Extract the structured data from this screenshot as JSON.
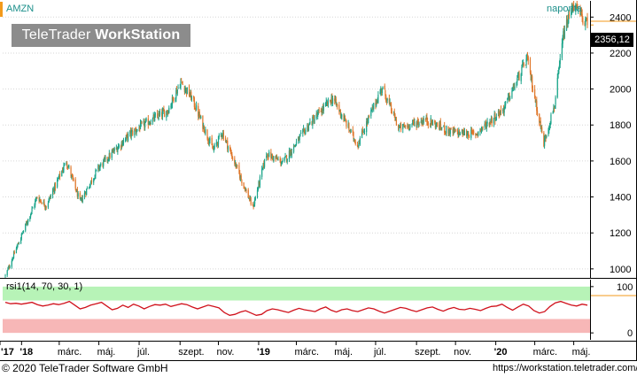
{
  "chart": {
    "symbol": "AMZN",
    "period": "naponta",
    "watermark_brand": "TeleTrader",
    "watermark_product": "WorkStation",
    "last_price": "2356,12",
    "rsi_label": "rsi1(14, 70, 30, 1)",
    "copyright": "© 2020 TeleTrader Software GmbH",
    "url": "https://workstation.teletrader.com/",
    "colors": {
      "up": "#1ba48a",
      "down": "#e0772a",
      "rsi_line": "#d0111b",
      "overbought": "#b7f3b7",
      "oversold": "#f7b7b7",
      "axis_accent": "#f39a1b"
    }
  },
  "chart_data": [
    {
      "type": "candlestick",
      "title": "AMZN",
      "ylim": [
        950,
        2490
      ],
      "y_ticks": [
        "2400",
        "2200",
        "2000",
        "1800",
        "1600",
        "1400",
        "1200",
        "1000"
      ],
      "x_ticks": [
        "'17",
        "'18",
        "márc.",
        "máj.",
        "júl.",
        "szept.",
        "nov.",
        "'19",
        "márc.",
        "máj.",
        "júl.",
        "szept.",
        "nov.",
        "'20",
        "márc.",
        "máj."
      ],
      "bold_x_ticks": [
        "'17",
        "'18",
        "'19",
        "'20"
      ],
      "x_range": [
        "2017-12-08",
        "2020-05-22"
      ],
      "grid": true,
      "last": 2356.12,
      "key_points": [
        {
          "date": "2017-12-08",
          "close": 960
        },
        {
          "date": "2017-12-29",
          "close": 1150
        },
        {
          "date": "2018-01-26",
          "close": 1400
        },
        {
          "date": "2018-02-09",
          "close": 1350
        },
        {
          "date": "2018-03-12",
          "close": 1600
        },
        {
          "date": "2018-04-02",
          "close": 1370
        },
        {
          "date": "2018-04-30",
          "close": 1560
        },
        {
          "date": "2018-06-18",
          "close": 1750
        },
        {
          "date": "2018-07-13",
          "close": 1810
        },
        {
          "date": "2018-08-15",
          "close": 1880
        },
        {
          "date": "2018-09-04",
          "close": 2040
        },
        {
          "date": "2018-09-21",
          "close": 1950
        },
        {
          "date": "2018-10-24",
          "close": 1660
        },
        {
          "date": "2018-11-07",
          "close": 1760
        },
        {
          "date": "2018-12-24",
          "close": 1340
        },
        {
          "date": "2019-01-14",
          "close": 1640
        },
        {
          "date": "2019-02-08",
          "close": 1590
        },
        {
          "date": "2019-03-20",
          "close": 1800
        },
        {
          "date": "2019-04-26",
          "close": 1950
        },
        {
          "date": "2019-06-03",
          "close": 1690
        },
        {
          "date": "2019-07-11",
          "close": 2010
        },
        {
          "date": "2019-08-06",
          "close": 1780
        },
        {
          "date": "2019-09-16",
          "close": 1830
        },
        {
          "date": "2019-10-25",
          "close": 1760
        },
        {
          "date": "2019-12-02",
          "close": 1750
        },
        {
          "date": "2020-01-14",
          "close": 1890
        },
        {
          "date": "2020-02-04",
          "close": 2050
        },
        {
          "date": "2020-02-19",
          "close": 2170
        },
        {
          "date": "2020-03-16",
          "close": 1700
        },
        {
          "date": "2020-04-02",
          "close": 1920
        },
        {
          "date": "2020-04-15",
          "close": 2300
        },
        {
          "date": "2020-04-30",
          "close": 2470
        },
        {
          "date": "2020-05-22",
          "close": 2356.12
        }
      ]
    },
    {
      "type": "line",
      "title": "rsi1(14, 70, 30, 1)",
      "ylim": [
        -15,
        115
      ],
      "y_ticks": [
        "100",
        "0"
      ],
      "overbought": 70,
      "oversold": 30,
      "series": [
        {
          "values": [
            66,
            63,
            64,
            62,
            64,
            66,
            61,
            58,
            60,
            63,
            61,
            64,
            68,
            60,
            52,
            55,
            60,
            63,
            66,
            58,
            50,
            53,
            60,
            55,
            62,
            58,
            52,
            57,
            61,
            60,
            62,
            57,
            60,
            63,
            61,
            56,
            52,
            56,
            60,
            57,
            54,
            44,
            38,
            40,
            45,
            48,
            43,
            38,
            40,
            48,
            52,
            50,
            47,
            44,
            49,
            53,
            50,
            48,
            46,
            52,
            56,
            49,
            45,
            50,
            52,
            48,
            46,
            50,
            54,
            52,
            47,
            43,
            47,
            51,
            55,
            53,
            49,
            46,
            50,
            54,
            56,
            51,
            47,
            52,
            55,
            51,
            50,
            53,
            51,
            48,
            53,
            57,
            58,
            62,
            55,
            49,
            56,
            62,
            58,
            48,
            43,
            46,
            57,
            65,
            68,
            64,
            60,
            58,
            62,
            60
          ]
        }
      ]
    }
  ]
}
